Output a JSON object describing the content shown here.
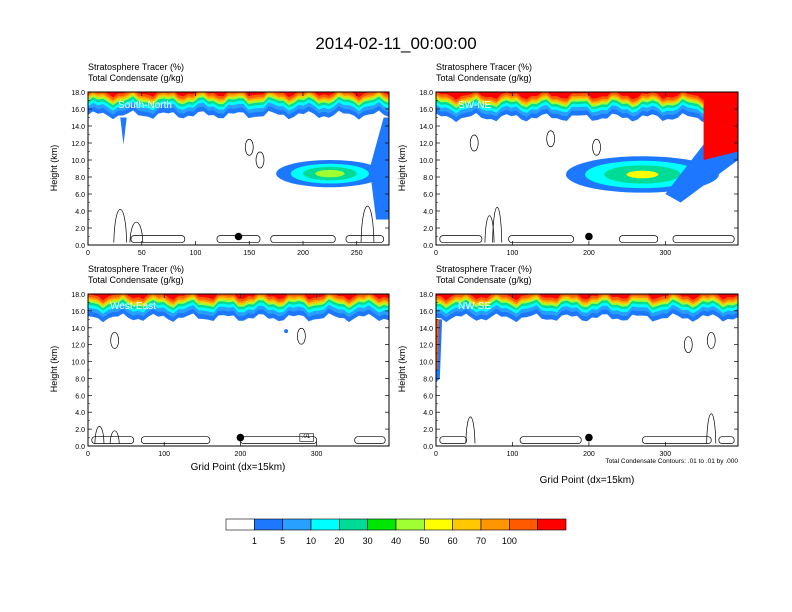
{
  "title": "2014-02-11_00:00:00",
  "footnote": "Total Condensate Contours: .01 to .01 by .000",
  "colorbar": {
    "labels": [
      "1",
      "5",
      "10",
      "20",
      "30",
      "40",
      "50",
      "60",
      "70",
      "100"
    ],
    "colors": [
      "#ffffff",
      "#1e78ff",
      "#28a0ff",
      "#00ffff",
      "#00dc96",
      "#00e600",
      "#a0ff32",
      "#ffff00",
      "#ffc800",
      "#ff9600",
      "#ff5a00",
      "#ff0000"
    ]
  },
  "chart_data": [
    {
      "type": "contour",
      "panel_label": "South-North",
      "title_line1": "Stratosphere Tracer   (%)",
      "title_line2": "Total Condensate   (g/kg)",
      "ylabel": "Height (km)",
      "xlabel": "",
      "xlim": [
        0,
        280
      ],
      "ylim": [
        0,
        18
      ],
      "xticks": [
        0,
        50,
        100,
        150,
        200,
        250
      ],
      "yticks": [
        "0.0",
        "2.0",
        "4.0",
        "6.0",
        "8.0",
        "10.0",
        "12.0",
        "14.0",
        "16.0",
        "18.0"
      ],
      "tropopause_km": 15.3,
      "marker": {
        "x": 140,
        "y": 1.0
      }
    },
    {
      "type": "contour",
      "panel_label": "SW-NE",
      "title_line1": "Stratosphere Tracer   (%)",
      "title_line2": "Total Condensate   (g/kg)",
      "ylabel": "Height (km)",
      "xlabel": "",
      "xlim": [
        0,
        395
      ],
      "ylim": [
        0,
        18
      ],
      "xticks": [
        0,
        100,
        200,
        300
      ],
      "yticks": [
        "0.0",
        "2.0",
        "4.0",
        "6.0",
        "8.0",
        "10.0",
        "12.0",
        "14.0",
        "16.0",
        "18.0"
      ],
      "tropopause_km": 15.0,
      "marker": {
        "x": 200,
        "y": 1.0
      }
    },
    {
      "type": "contour",
      "panel_label": "West-East",
      "title_line1": "Stratosphere Tracer   (%)",
      "title_line2": "Total Condensate   (g/kg)",
      "ylabel": "Height (km)",
      "xlabel": "Grid Point (dx=15km)",
      "xlim": [
        0,
        395
      ],
      "ylim": [
        0,
        18
      ],
      "xticks": [
        0,
        100,
        200,
        300
      ],
      "yticks": [
        "0.0",
        "2.0",
        "4.0",
        "6.0",
        "8.0",
        "10.0",
        "12.0",
        "14.0",
        "16.0",
        "18.0"
      ],
      "tropopause_km": 15.2,
      "marker": {
        "x": 200,
        "y": 1.0
      },
      "box_label": ".01"
    },
    {
      "type": "contour",
      "panel_label": "NW-SE",
      "title_line1": "Stratosphere Tracer   (%)",
      "title_line2": "Total Condensate   (g/kg)",
      "ylabel": "Height (km)",
      "xlabel": "Grid Point (dx=15km)",
      "xlim": [
        0,
        395
      ],
      "ylim": [
        0,
        18
      ],
      "xticks": [
        0,
        100,
        200,
        300
      ],
      "yticks": [
        "0.0",
        "2.0",
        "4.0",
        "6.0",
        "8.0",
        "10.0",
        "12.0",
        "14.0",
        "16.0",
        "18.0"
      ],
      "tropopause_km": 15.2,
      "marker": {
        "x": 200,
        "y": 1.0
      }
    }
  ]
}
